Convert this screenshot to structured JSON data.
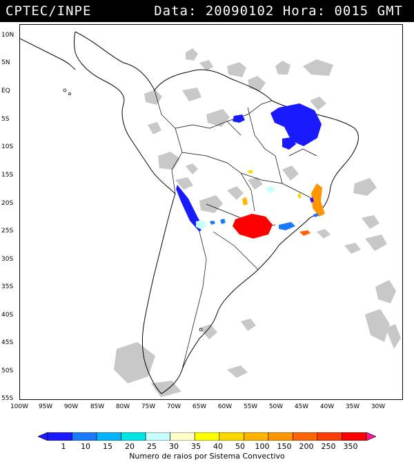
{
  "header": {
    "agency": "CPTEC/INPE",
    "date_label": "Data:",
    "date_value": "20090102",
    "hour_label": "Hora:",
    "hour_value": "0015 GMT"
  },
  "axes": {
    "lat_labels": [
      "10N",
      "5N",
      "EQ",
      "5S",
      "10S",
      "15S",
      "20S",
      "25S",
      "30S",
      "35S",
      "40S",
      "45S",
      "50S",
      "55S"
    ],
    "lat_values": [
      10,
      5,
      0,
      -5,
      -10,
      -15,
      -20,
      -25,
      -30,
      -35,
      -40,
      -45,
      -50,
      -55
    ],
    "lon_labels": [
      "100W",
      "95W",
      "90W",
      "85W",
      "80W",
      "75W",
      "70W",
      "65W",
      "60W",
      "55W",
      "50W",
      "45W",
      "40W",
      "35W",
      "30W"
    ],
    "lon_values": [
      -100,
      -95,
      -90,
      -85,
      -80,
      -75,
      -70,
      -65,
      -60,
      -55,
      -50,
      -45,
      -40,
      -35,
      -30
    ]
  },
  "colorbar": {
    "labels": [
      "1",
      "10",
      "15",
      "20",
      "25",
      "30",
      "35",
      "40",
      "50",
      "100",
      "150",
      "200",
      "250",
      "350"
    ],
    "colors": [
      "#1a1aff",
      "#1a1aff",
      "#1a7aff",
      "#00b4ff",
      "#00e6e6",
      "#c8ffff",
      "#ffffc8",
      "#ffff00",
      "#ffd700",
      "#ffb400",
      "#ff9600",
      "#ff6400",
      "#ff3c00",
      "#ff0000",
      "#ff1493"
    ],
    "title": "Numero de raios por Sistema Convectivo"
  },
  "map_colors": {
    "cloud": "#c8c8c8",
    "coast": "#000000",
    "border": "#000000"
  }
}
